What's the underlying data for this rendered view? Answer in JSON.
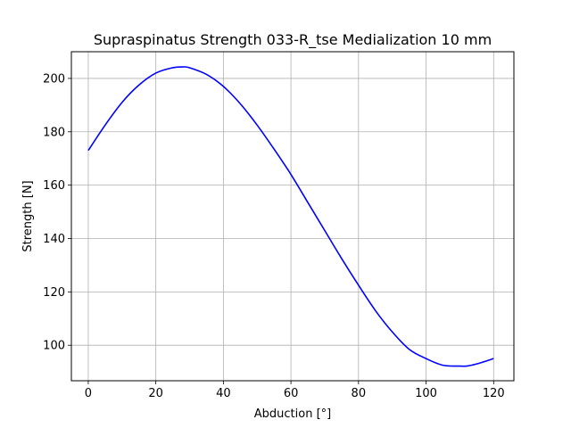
{
  "chart_data": {
    "type": "line",
    "title": "Supraspinatus Strength 033-R_tse Medialization 10 mm",
    "xlabel": "Abduction [°]",
    "ylabel": "Strength [N]",
    "xlim": [
      -5,
      126
    ],
    "ylim": [
      86.7,
      210
    ],
    "grid": true,
    "xticks": [
      0,
      20,
      40,
      60,
      80,
      100,
      120
    ],
    "yticks": [
      100,
      120,
      140,
      160,
      180,
      200
    ],
    "series": [
      {
        "color": "#0000ff",
        "x": [
          0,
          5,
          10,
          15,
          20,
          25,
          28,
          30,
          35,
          40,
          45,
          50,
          55,
          60,
          65,
          70,
          75,
          80,
          85,
          90,
          95,
          100,
          105,
          110,
          112,
          115,
          120
        ],
        "y": [
          173,
          182.5,
          191,
          197.5,
          202,
          204,
          204.3,
          204,
          201.5,
          197,
          190.5,
          182.5,
          173.5,
          164,
          153.5,
          143,
          132.5,
          122.5,
          113,
          105,
          98.5,
          95,
          92.5,
          92.2,
          92.2,
          93,
          95
        ]
      }
    ]
  }
}
